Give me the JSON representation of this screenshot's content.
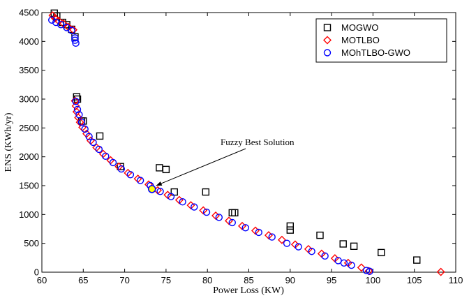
{
  "chart_data": {
    "type": "scatter",
    "title": "",
    "xlabel": "Power Loss (KW)",
    "ylabel": "ENS (KWh/yr)",
    "xlim": [
      60,
      110
    ],
    "ylim": [
      0,
      4500
    ],
    "xticks": [
      60,
      65,
      70,
      75,
      80,
      85,
      90,
      95,
      100,
      105,
      110
    ],
    "yticks": [
      0,
      500,
      1000,
      1500,
      2000,
      2500,
      3000,
      3500,
      4000,
      4500
    ],
    "grid": false,
    "legend_position": "top-right",
    "series": [
      {
        "name": "MOGWO",
        "marker": "square",
        "color": "#000000",
        "points": [
          [
            61.5,
            4490
          ],
          [
            61.8,
            4440
          ],
          [
            62.5,
            4330
          ],
          [
            63.0,
            4290
          ],
          [
            63.6,
            4210
          ],
          [
            64.0,
            4080
          ],
          [
            64.2,
            3040
          ],
          [
            64.3,
            3000
          ],
          [
            64.8,
            2620
          ],
          [
            65.0,
            2620
          ],
          [
            67.0,
            2360
          ],
          [
            69.5,
            1830
          ],
          [
            74.2,
            1810
          ],
          [
            75.0,
            1780
          ],
          [
            76.0,
            1390
          ],
          [
            79.8,
            1390
          ],
          [
            83.0,
            1030
          ],
          [
            83.3,
            1030
          ],
          [
            90.0,
            800
          ],
          [
            90.0,
            730
          ],
          [
            93.6,
            640
          ],
          [
            96.4,
            490
          ],
          [
            97.7,
            450
          ],
          [
            101.0,
            340
          ],
          [
            105.3,
            210
          ]
        ]
      },
      {
        "name": "MOTLBO",
        "marker": "diamond",
        "color": "#ff0000",
        "points": [
          [
            61.3,
            4450
          ],
          [
            61.6,
            4400
          ],
          [
            62.0,
            4360
          ],
          [
            62.6,
            4310
          ],
          [
            63.2,
            4250
          ],
          [
            63.8,
            4200
          ],
          [
            64.0,
            2970
          ],
          [
            64.1,
            2880
          ],
          [
            64.2,
            2780
          ],
          [
            64.4,
            2680
          ],
          [
            64.6,
            2600
          ],
          [
            64.9,
            2510
          ],
          [
            65.4,
            2400
          ],
          [
            65.9,
            2280
          ],
          [
            66.6,
            2160
          ],
          [
            67.4,
            2050
          ],
          [
            68.3,
            1940
          ],
          [
            69.3,
            1830
          ],
          [
            70.4,
            1720
          ],
          [
            71.6,
            1620
          ],
          [
            72.9,
            1520
          ],
          [
            74.0,
            1420
          ],
          [
            75.2,
            1340
          ],
          [
            76.6,
            1250
          ],
          [
            78.0,
            1160
          ],
          [
            79.5,
            1070
          ],
          [
            81.0,
            980
          ],
          [
            82.6,
            890
          ],
          [
            84.2,
            800
          ],
          [
            85.8,
            720
          ],
          [
            87.4,
            640
          ],
          [
            89.0,
            560
          ],
          [
            90.6,
            480
          ],
          [
            92.2,
            400
          ],
          [
            93.8,
            320
          ],
          [
            95.4,
            240
          ],
          [
            97.0,
            160
          ],
          [
            98.6,
            80
          ],
          [
            99.5,
            20
          ],
          [
            108.2,
            5
          ]
        ]
      },
      {
        "name": "MOhTLBO-GWO",
        "marker": "circle",
        "color": "#0000ff",
        "points": [
          [
            61.2,
            4370
          ],
          [
            61.7,
            4330
          ],
          [
            62.3,
            4290
          ],
          [
            63.0,
            4240
          ],
          [
            63.6,
            4190
          ],
          [
            64.0,
            4060
          ],
          [
            64.0,
            4020
          ],
          [
            64.1,
            3970
          ],
          [
            64.1,
            2960
          ],
          [
            64.3,
            2820
          ],
          [
            64.5,
            2730
          ],
          [
            64.8,
            2600
          ],
          [
            65.2,
            2480
          ],
          [
            65.7,
            2350
          ],
          [
            66.2,
            2250
          ],
          [
            66.9,
            2130
          ],
          [
            67.7,
            2010
          ],
          [
            68.6,
            1900
          ],
          [
            69.6,
            1790
          ],
          [
            70.7,
            1690
          ],
          [
            71.9,
            1590
          ],
          [
            73.1,
            1500
          ],
          [
            74.3,
            1400
          ],
          [
            75.6,
            1310
          ],
          [
            77.0,
            1220
          ],
          [
            78.4,
            1130
          ],
          [
            79.9,
            1040
          ],
          [
            81.4,
            950
          ],
          [
            83.0,
            860
          ],
          [
            84.6,
            770
          ],
          [
            86.2,
            690
          ],
          [
            87.8,
            610
          ],
          [
            89.6,
            500
          ],
          [
            91.0,
            440
          ],
          [
            92.6,
            360
          ],
          [
            94.2,
            280
          ],
          [
            95.8,
            200
          ],
          [
            96.5,
            160
          ],
          [
            97.4,
            120
          ],
          [
            99.2,
            30
          ],
          [
            99.6,
            15
          ]
        ]
      }
    ],
    "highlight": {
      "label": "Fuzzy Best Solution",
      "x": 73.3,
      "y": 1440,
      "fill": "#ffff00",
      "stroke": "#0000ff"
    }
  }
}
